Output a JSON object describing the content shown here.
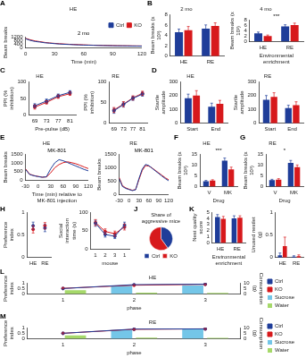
{
  "chart_data": [
    {
      "type": "line",
      "title": "A",
      "subtitle": "HE",
      "annotations": [
        "2 mo"
      ],
      "xlabel": "Time (min)",
      "ylabel": "Beam breaks",
      "x": [
        0,
        5,
        10,
        15,
        20,
        25,
        30,
        35,
        40,
        45,
        50,
        55,
        60,
        65,
        70,
        75,
        80,
        85,
        90,
        95,
        100,
        105,
        110,
        115,
        120
      ],
      "xlim": [
        0,
        120
      ],
      "xticks": [
        0,
        30,
        60,
        90,
        120
      ],
      "ylim": [
        0,
        1200
      ],
      "yticks": [
        0,
        400,
        800,
        1200
      ],
      "grid": false,
      "legend": "top-right",
      "series": [
        {
          "name": "Ctrl",
          "color": "#1f3d99",
          "marker": "none",
          "values": [
            1000,
            820,
            700,
            640,
            560,
            520,
            470,
            430,
            400,
            380,
            350,
            330,
            310,
            300,
            290,
            270,
            260,
            250,
            240,
            230,
            230,
            220,
            210,
            210,
            200
          ]
        },
        {
          "name": "KO",
          "color": "#d7191c",
          "marker": "none",
          "values": [
            1050,
            880,
            760,
            680,
            600,
            540,
            500,
            460,
            430,
            400,
            380,
            360,
            340,
            320,
            300,
            290,
            280,
            270,
            260,
            250,
            240,
            240,
            230,
            220,
            220
          ]
        }
      ]
    },
    {
      "type": "bar",
      "title": "B",
      "subtitle": "2 mo",
      "ylabel": "Beam breaks (x 10³)",
      "categories": [
        "HE",
        "RE"
      ],
      "ylim": [
        0,
        8
      ],
      "yticks": [
        0,
        2,
        4,
        6,
        8
      ],
      "grid": false,
      "series": [
        {
          "name": "Ctrl",
          "color": "#1f3d99",
          "values": [
            4.6,
            5.3
          ],
          "errors": [
            0.6,
            0.7
          ]
        },
        {
          "name": "KO",
          "color": "#d7191c",
          "values": [
            5.0,
            5.8
          ],
          "errors": [
            0.7,
            0.6
          ]
        }
      ]
    },
    {
      "type": "bar",
      "subtitle": "4 mo",
      "annotations": [
        "***"
      ],
      "xlabel": "Environmental enrichment",
      "ylabel": "Beam breaks (x 10³)",
      "categories": [
        "HE",
        "RE"
      ],
      "ylim": [
        0,
        8
      ],
      "yticks": [
        0,
        2,
        4,
        6,
        8
      ],
      "grid": false,
      "series": [
        {
          "name": "Ctrl",
          "color": "#1f3d99",
          "values": [
            3.0,
            5.6
          ],
          "errors": [
            0.5,
            0.6
          ]
        },
        {
          "name": "KO",
          "color": "#d7191c",
          "values": [
            2.0,
            6.1
          ],
          "errors": [
            0.4,
            0.7
          ]
        }
      ]
    },
    {
      "type": "line",
      "title": "C",
      "subtitle": "HE",
      "xlabel": "Pre-pulse (dB)",
      "ylabel": "PPI (% inhibition)",
      "categories": [
        69,
        73,
        77,
        81
      ],
      "ylim": [
        0,
        100
      ],
      "yticks": [
        0,
        50,
        100
      ],
      "grid": false,
      "series": [
        {
          "name": "Ctrl",
          "color": "#1f3d99",
          "marker": "circle",
          "values": [
            28,
            42,
            58,
            68
          ],
          "errors": [
            6,
            6,
            5,
            5
          ]
        },
        {
          "name": "KO",
          "color": "#d7191c",
          "marker": "circle",
          "values": [
            24,
            38,
            55,
            64
          ],
          "errors": [
            6,
            5,
            5,
            5
          ]
        }
      ]
    },
    {
      "type": "line",
      "subtitle": "RE",
      "ylabel": "PPI (% inhibition)",
      "categories": [
        69,
        73,
        77,
        81
      ],
      "ylim": [
        0,
        100
      ],
      "yticks": [
        0,
        50,
        100
      ],
      "grid": false,
      "series": [
        {
          "name": "Ctrl",
          "color": "#1f3d99",
          "marker": "circle",
          "values": [
            30,
            45,
            60,
            70
          ],
          "errors": [
            6,
            6,
            5,
            5
          ]
        },
        {
          "name": "KO",
          "color": "#d7191c",
          "marker": "circle",
          "values": [
            32,
            46,
            61,
            72
          ],
          "errors": [
            6,
            6,
            5,
            5
          ]
        }
      ]
    },
    {
      "type": "bar",
      "title": "D",
      "subtitle": "HE",
      "ylabel": "Startle amplitude",
      "categories": [
        "Start",
        "End"
      ],
      "ylim": [
        0,
        300
      ],
      "yticks": [
        0,
        100,
        200,
        300
      ],
      "grid": false,
      "series": [
        {
          "name": "Ctrl",
          "color": "#1f3d99",
          "values": [
            180,
            120
          ],
          "errors": [
            30,
            25
          ]
        },
        {
          "name": "KO",
          "color": "#d7191c",
          "values": [
            200,
            140
          ],
          "errors": [
            35,
            25
          ]
        }
      ]
    },
    {
      "type": "bar",
      "subtitle": "RE",
      "ylabel": "Startle amplitude",
      "categories": [
        "Start",
        "End"
      ],
      "ylim": [
        0,
        300
      ],
      "yticks": [
        0,
        100,
        200,
        300
      ],
      "grid": false,
      "series": [
        {
          "name": "Ctrl",
          "color": "#1f3d99",
          "values": [
            170,
            110
          ],
          "errors": [
            30,
            20
          ]
        },
        {
          "name": "KO",
          "color": "#d7191c",
          "values": [
            190,
            130
          ],
          "errors": [
            30,
            25
          ]
        }
      ]
    },
    {
      "type": "line",
      "title": "E",
      "subtitle": "HE",
      "annotations": [
        "MK-801"
      ],
      "xlabel": "Time (min) relative to MK-801 injection",
      "ylabel": "Beam breaks",
      "x": [
        -30,
        -20,
        -10,
        0,
        10,
        20,
        30,
        40,
        50,
        60,
        70,
        80,
        90,
        100,
        110,
        120
      ],
      "xlim": [
        -30,
        120
      ],
      "xticks": [
        -30,
        0,
        30,
        60,
        90,
        120
      ],
      "ylim": [
        0,
        1500
      ],
      "yticks": [
        0,
        500,
        1000,
        1500
      ],
      "grid": false,
      "series": [
        {
          "name": "Ctrl",
          "color": "#1f3d99",
          "marker": "none",
          "values": [
            620,
            330,
            260,
            210,
            170,
            200,
            650,
            1000,
            1180,
            1120,
            1020,
            920,
            820,
            720,
            620,
            540
          ]
        },
        {
          "name": "KO",
          "color": "#d7191c",
          "marker": "none",
          "values": [
            660,
            350,
            270,
            220,
            180,
            190,
            420,
            720,
            900,
            1010,
            1060,
            1010,
            950,
            860,
            760,
            670
          ]
        }
      ]
    },
    {
      "type": "line",
      "subtitle": "RE",
      "annotations": [
        "MK-801"
      ],
      "ylabel": "Beam breaks",
      "x": [
        -30,
        -20,
        -10,
        0,
        10,
        20,
        30,
        40,
        50,
        60,
        70,
        80,
        90,
        100,
        110,
        120
      ],
      "xlim": [
        -30,
        120
      ],
      "xticks": [
        -30,
        0,
        30,
        60,
        90,
        120
      ],
      "ylim": [
        0,
        1500
      ],
      "yticks": [
        0,
        500,
        1000,
        1500
      ],
      "grid": false,
      "series": [
        {
          "name": "Ctrl",
          "color": "#1f3d99",
          "marker": "none",
          "values": [
            600,
            310,
            240,
            200,
            160,
            190,
            600,
            950,
            1120,
            1080,
            980,
            880,
            790,
            690,
            600,
            520
          ]
        },
        {
          "name": "KO",
          "color": "#d7191c",
          "marker": "none",
          "values": [
            640,
            340,
            260,
            210,
            170,
            200,
            560,
            900,
            1080,
            1060,
            990,
            900,
            810,
            720,
            630,
            560
          ]
        }
      ]
    },
    {
      "type": "bar",
      "title": "F",
      "subtitle": "HE",
      "annotations": [
        "***"
      ],
      "xlabel": "Drug",
      "ylabel": "Beam breaks (x 10³)",
      "categories": [
        "V",
        "MK"
      ],
      "ylim": [
        0,
        15
      ],
      "yticks": [
        0,
        5,
        10,
        15
      ],
      "grid": false,
      "series": [
        {
          "name": "Ctrl",
          "color": "#1f3d99",
          "values": [
            2.5,
            12
          ],
          "errors": [
            0.4,
            1.2
          ]
        },
        {
          "name": "KO",
          "color": "#d7191c",
          "values": [
            2.8,
            8
          ],
          "errors": [
            0.4,
            1.0
          ]
        }
      ]
    },
    {
      "type": "bar",
      "title": "G",
      "subtitle": "RE",
      "annotations": [
        "*"
      ],
      "xlabel": "Drug",
      "ylabel": "Beam breaks (x 10³)",
      "categories": [
        "V",
        "MK"
      ],
      "ylim": [
        0,
        15
      ],
      "yticks": [
        0,
        5,
        10,
        15
      ],
      "grid": false,
      "series": [
        {
          "name": "Ctrl",
          "color": "#1f3d99",
          "values": [
            3,
            11
          ],
          "errors": [
            0.4,
            1.1
          ]
        },
        {
          "name": "KO",
          "color": "#d7191c",
          "values": [
            3.2,
            9
          ],
          "errors": [
            0.5,
            1.0
          ]
        }
      ]
    },
    {
      "type": "line",
      "title": "H",
      "ylabel": "Preference index",
      "categories": [
        "HE",
        "RE"
      ],
      "ylim": [
        0,
        1
      ],
      "yticks": [
        0,
        0.5,
        1
      ],
      "grid": false,
      "series": [
        {
          "name": "Ctrl",
          "color": "#1f3d99",
          "marker": "circle",
          "line_style": "none",
          "values": [
            0.7,
            0.65
          ],
          "errors": [
            0.08,
            0.08
          ]
        },
        {
          "name": "KO",
          "color": "#d7191c",
          "marker": "circle",
          "line_style": "none",
          "values": [
            0.62,
            0.7
          ],
          "errors": [
            0.08,
            0.07
          ]
        }
      ]
    },
    {
      "type": "line",
      "xlabel": "mouse",
      "ylabel": "Social interaction time (s)",
      "categories": [
        1,
        2,
        3,
        1
      ],
      "ylim": [
        0,
        100
      ],
      "yticks": [
        0,
        50,
        100
      ],
      "grid": false,
      "series": [
        {
          "name": "Ctrl",
          "color": "#1f3d99",
          "marker": "circle",
          "values": [
            70,
            40,
            35,
            65
          ],
          "errors": [
            8,
            7,
            6,
            8
          ]
        },
        {
          "name": "KO",
          "color": "#d7191c",
          "marker": "circle",
          "values": [
            72,
            48,
            42,
            60
          ],
          "errors": [
            8,
            7,
            7,
            8
          ]
        }
      ]
    },
    {
      "type": "pie",
      "title": "J",
      "subtitle": "Share of aggressive mice",
      "categories": [
        "Ctrl",
        "KO"
      ],
      "values": [
        40,
        60
      ],
      "colors": [
        "#1f3d99",
        "#d7191c"
      ],
      "legend": "bottom"
    },
    {
      "type": "bar",
      "title": "K",
      "xlabel": "Environmental enrichment",
      "ylabel": "Nest quality score",
      "categories": [
        "HE",
        "RE"
      ],
      "ylim": [
        0,
        5
      ],
      "yticks": [
        0,
        1,
        2,
        3,
        4,
        5
      ],
      "grid": false,
      "series": [
        {
          "name": "Ctrl",
          "color": "#1f3d99",
          "values": [
            4.2,
            4.0
          ],
          "errors": [
            0.4,
            0.4
          ]
        },
        {
          "name": "KO",
          "color": "#d7191c",
          "values": [
            3.9,
            4.1
          ],
          "errors": [
            0.4,
            0.3
          ]
        }
      ]
    },
    {
      "type": "bar",
      "ylabel": "Unused nestlet (g)",
      "categories": [
        "HE",
        "RE"
      ],
      "ylim": [
        0,
        1
      ],
      "yticks": [
        0,
        0.5,
        1
      ],
      "grid": false,
      "series": [
        {
          "name": "Ctrl",
          "color": "#1f3d99",
          "values": [
            0.05,
            0.02
          ],
          "errors": [
            0.05,
            0.02
          ]
        },
        {
          "name": "KO",
          "color": "#d7191c",
          "values": [
            0.25,
            0.03
          ],
          "errors": [
            0.2,
            0.03
          ]
        }
      ]
    },
    {
      "type": "bar",
      "title": "L",
      "subtitle": "HE",
      "xlabel": "phase",
      "ylabel": "Preference index",
      "y2label": "Consumption (g)",
      "categories": [
        1,
        2,
        3
      ],
      "ylim": [
        0,
        1
      ],
      "yticks": [
        0,
        0.5,
        1
      ],
      "y2lim": [
        0,
        10
      ],
      "y2ticks": [
        0,
        5,
        10
      ],
      "grid": false,
      "legend": "right",
      "series": [
        {
          "name": "Ctrl",
          "type": "line",
          "color": "#1f3d99",
          "marker": "circle",
          "values": [
            0.5,
            0.85,
            0.9
          ],
          "errors": [
            0.05,
            0.05,
            0.04
          ]
        },
        {
          "name": "KO",
          "type": "line",
          "color": "#d7191c",
          "marker": "circle",
          "values": [
            0.52,
            0.8,
            0.88
          ],
          "errors": [
            0.05,
            0.06,
            0.05
          ]
        },
        {
          "name": "Sucrose",
          "type": "bar",
          "axis": "y2",
          "color": "#74c6e8",
          "values": [
            0,
            7.5,
            8
          ]
        },
        {
          "name": "Water",
          "type": "bar",
          "axis": "y2",
          "color": "#a6d96a",
          "values": [
            3.5,
            1.2,
            1.0
          ]
        }
      ]
    },
    {
      "type": "bar",
      "title": "M",
      "subtitle": "RE",
      "xlabel": "phase",
      "ylabel": "Preference index",
      "y2label": "Consumption (g)",
      "categories": [
        1,
        2,
        3
      ],
      "ylim": [
        0,
        1
      ],
      "yticks": [
        0,
        0.5,
        1
      ],
      "y2lim": [
        0,
        10
      ],
      "y2ticks": [
        0,
        5,
        10
      ],
      "grid": false,
      "legend": "right",
      "series": [
        {
          "name": "Ctrl",
          "type": "line",
          "color": "#1f3d99",
          "marker": "circle",
          "values": [
            0.5,
            0.88,
            0.9
          ],
          "errors": [
            0.05,
            0.04,
            0.04
          ]
        },
        {
          "name": "KO",
          "type": "line",
          "color": "#d7191c",
          "marker": "circle",
          "values": [
            0.5,
            0.86,
            0.9
          ],
          "errors": [
            0.05,
            0.05,
            0.04
          ]
        },
        {
          "name": "Sucrose",
          "type": "bar",
          "axis": "y2",
          "color": "#74c6e8",
          "values": [
            0,
            8,
            8.5
          ]
        },
        {
          "name": "Water",
          "type": "bar",
          "axis": "y2",
          "color": "#a6d96a",
          "values": [
            3.2,
            1.0,
            0.9
          ]
        }
      ]
    }
  ]
}
